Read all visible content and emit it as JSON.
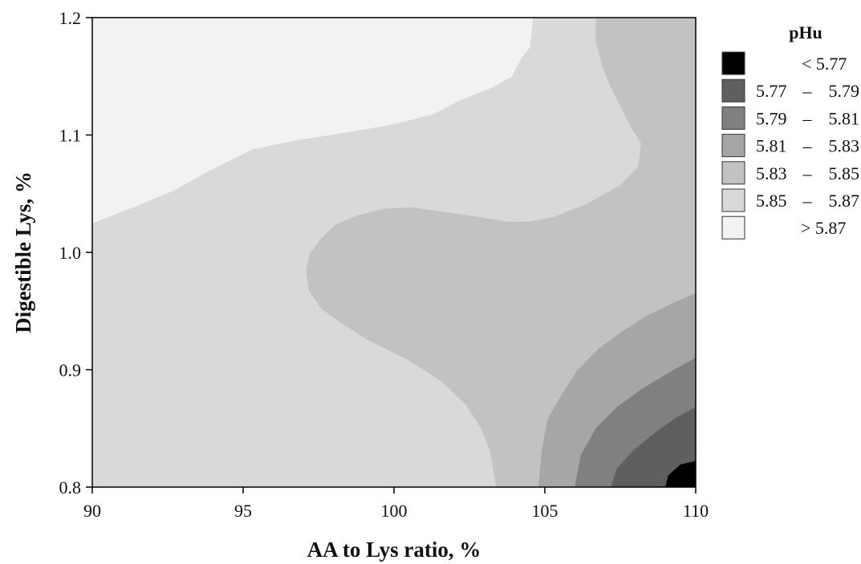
{
  "chart_data": {
    "type": "contour",
    "title": "",
    "xlabel": "AA to Lys ratio, %",
    "ylabel": "Digestible Lys, %",
    "xlim": [
      90,
      110
    ],
    "ylim": [
      0.8,
      1.2
    ],
    "xticks": [
      "90",
      "95",
      "100",
      "105",
      "110"
    ],
    "yticks": [
      "0.8",
      "0.9",
      "1.0",
      "1.1",
      "1.2"
    ],
    "xtick_values": [
      90,
      95,
      100,
      105,
      110
    ],
    "ytick_values": [
      0.8,
      0.9,
      1.0,
      1.1,
      1.2
    ],
    "grid": false,
    "legend_position": "right",
    "legend": {
      "title": "pHu",
      "entries": [
        {
          "op": "<",
          "lo": "5.77",
          "hi": "",
          "color": "#000000"
        },
        {
          "op": "–",
          "lo": "5.77",
          "hi": "5.79",
          "color": "#5f5f5f"
        },
        {
          "op": "–",
          "lo": "5.79",
          "hi": "5.81",
          "color": "#808080"
        },
        {
          "op": "–",
          "lo": "5.81",
          "hi": "5.83",
          "color": "#a6a6a6"
        },
        {
          "op": "–",
          "lo": "5.83",
          "hi": "5.85",
          "color": "#c2c2c2"
        },
        {
          "op": "–",
          "lo": "5.85",
          "hi": "5.87",
          "color": "#d9d9d9"
        },
        {
          "op": ">",
          "lo": "",
          "hi": "5.87",
          "color": "#f2f2f2"
        }
      ]
    },
    "regions": [
      {
        "level": "5.85 – 5.87",
        "color": "#d9d9d9",
        "fill_whole": true,
        "boundary": []
      },
      {
        "level": "> 5.87",
        "color": "#f2f2f2",
        "boundary": [
          [
            90,
            1.2
          ],
          [
            104.6,
            1.2
          ],
          [
            104.5,
            1.175
          ],
          [
            104.2,
            1.165
          ],
          [
            103.9,
            1.15
          ],
          [
            103.2,
            1.14
          ],
          [
            102.2,
            1.13
          ],
          [
            101.3,
            1.118
          ],
          [
            100.1,
            1.11
          ],
          [
            98.6,
            1.103
          ],
          [
            96.8,
            1.096
          ],
          [
            95.3,
            1.088
          ],
          [
            93.9,
            1.07
          ],
          [
            92.7,
            1.053
          ],
          [
            91.3,
            1.038
          ],
          [
            90,
            1.025
          ]
        ]
      },
      {
        "level": "5.83 – 5.85",
        "color": "#c2c2c2",
        "boundary": [
          [
            104.8,
            1.2
          ],
          [
            110,
            1.2
          ],
          [
            110,
            0.8
          ],
          [
            103.4,
            0.8
          ],
          [
            103.2,
            0.83
          ],
          [
            102.9,
            0.85
          ],
          [
            102.4,
            0.87
          ],
          [
            101.6,
            0.89
          ],
          [
            100.5,
            0.908
          ],
          [
            99.1,
            0.926
          ],
          [
            98.2,
            0.941
          ],
          [
            97.6,
            0.952
          ],
          [
            97.2,
            0.967
          ],
          [
            97.1,
            0.983
          ],
          [
            97.2,
            0.998
          ],
          [
            97.6,
            1.012
          ],
          [
            98.1,
            1.024
          ],
          [
            98.9,
            1.032
          ],
          [
            99.7,
            1.037
          ],
          [
            100.6,
            1.038
          ],
          [
            101.7,
            1.034
          ],
          [
            102.8,
            1.03
          ],
          [
            103.7,
            1.026
          ],
          [
            104.5,
            1.026
          ],
          [
            105.3,
            1.03
          ],
          [
            106.4,
            1.041
          ],
          [
            107.5,
            1.057
          ],
          [
            108.1,
            1.073
          ],
          [
            108.2,
            1.093
          ],
          [
            107.9,
            1.105
          ],
          [
            107.6,
            1.12
          ],
          [
            107.2,
            1.14
          ],
          [
            106.9,
            1.16
          ],
          [
            106.7,
            1.18
          ],
          [
            106.7,
            1.2
          ]
        ]
      },
      {
        "level": "5.81 – 5.83",
        "color": "#a6a6a6",
        "boundary": [
          [
            110,
            0.965
          ],
          [
            110,
            0.8
          ],
          [
            104.8,
            0.8
          ],
          [
            104.9,
            0.83
          ],
          [
            105.1,
            0.858
          ],
          [
            105.6,
            0.88
          ],
          [
            106.1,
            0.9
          ],
          [
            106.8,
            0.918
          ],
          [
            107.6,
            0.933
          ],
          [
            108.4,
            0.946
          ],
          [
            109.2,
            0.956
          ]
        ]
      },
      {
        "level": "5.79 – 5.81",
        "color": "#808080",
        "boundary": [
          [
            110,
            0.91
          ],
          [
            110,
            0.8
          ],
          [
            106.0,
            0.8
          ],
          [
            106.2,
            0.827
          ],
          [
            106.7,
            0.85
          ],
          [
            107.4,
            0.868
          ],
          [
            108.2,
            0.883
          ],
          [
            109.1,
            0.897
          ]
        ]
      },
      {
        "level": "5.77 – 5.79",
        "color": "#5f5f5f",
        "boundary": [
          [
            110,
            0.868
          ],
          [
            110,
            0.8
          ],
          [
            107.2,
            0.8
          ],
          [
            107.4,
            0.816
          ],
          [
            107.9,
            0.83
          ],
          [
            108.6,
            0.845
          ],
          [
            109.3,
            0.858
          ]
        ]
      },
      {
        "level": "< 5.77",
        "color": "#000000",
        "boundary": [
          [
            110,
            0.822
          ],
          [
            110,
            0.8
          ],
          [
            109.0,
            0.8
          ],
          [
            109.1,
            0.81
          ],
          [
            109.5,
            0.819
          ]
        ]
      }
    ]
  }
}
